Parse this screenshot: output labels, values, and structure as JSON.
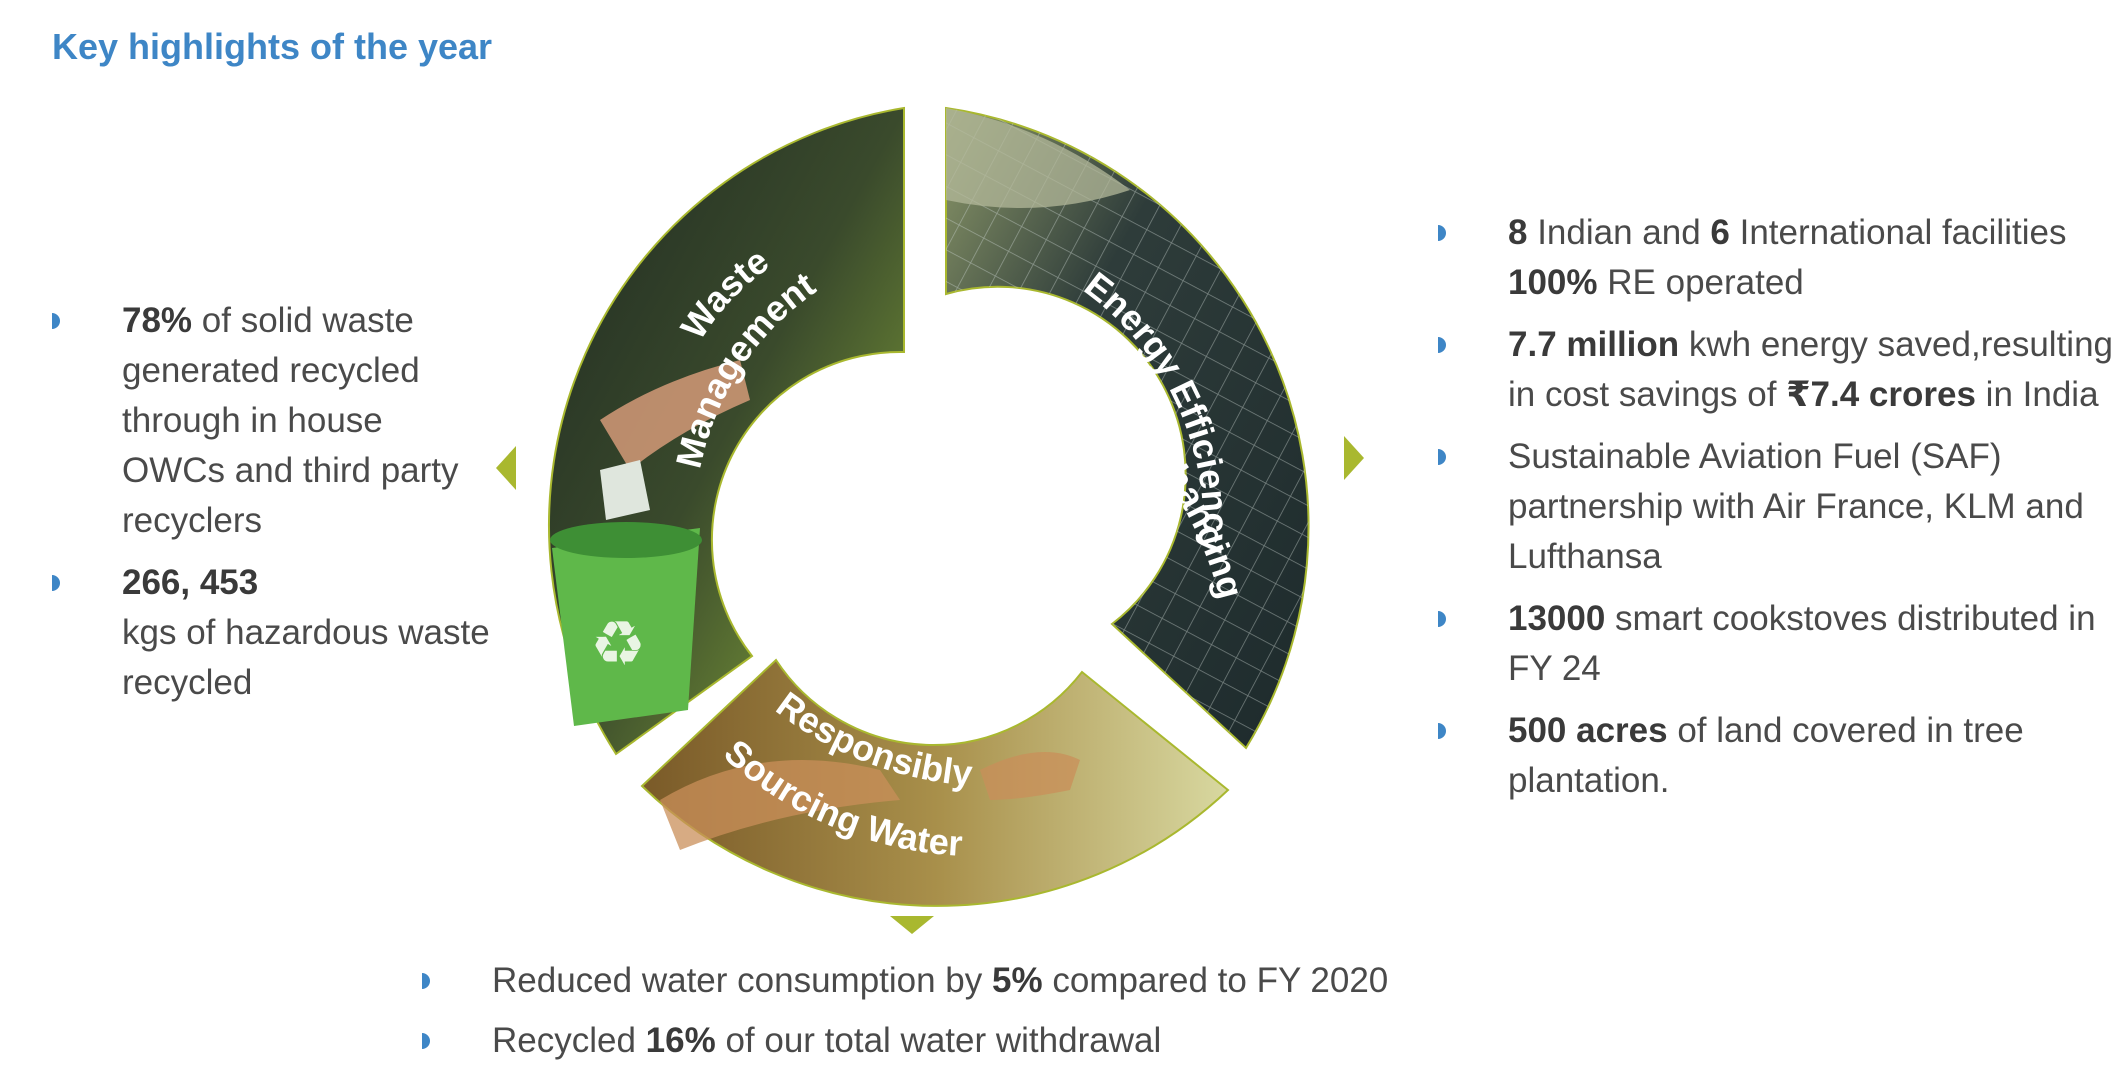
{
  "title": "Key highlights of the year",
  "colors": {
    "accent_blue": "#3e86c6",
    "olive": "#a9b82f",
    "text": "#4a4a4a"
  },
  "wheel": {
    "segments": [
      {
        "label_line1": "Waste",
        "label_line2": "Management",
        "icon": "recycle-bin-photo"
      },
      {
        "label_line1": "Enhancing",
        "label_line2": "Energy Efficiency",
        "icon": "solar-panels-photo"
      },
      {
        "label_line1": "Responsibly",
        "label_line2": "Sourcing Water",
        "icon": "hands-water-photo"
      }
    ]
  },
  "left": {
    "items": [
      {
        "bold": "78%",
        "text": " of solid waste generated recycled through in house OWCs and third party recyclers"
      },
      {
        "bold": "266, 453",
        "text": "kgs of hazardous waste recycled"
      }
    ]
  },
  "right": {
    "items": [
      {
        "b1": "8",
        "t1": " Indian and ",
        "b2": "6",
        "t2": " International facilities ",
        "b3": "100%",
        "t3": " RE operated"
      },
      {
        "b1": "7.7 million",
        "t1": " kwh energy saved,resulting in cost savings of ",
        "b2": "₹7.4 crores",
        "t2": " in India"
      },
      {
        "text": "Sustainable Aviation Fuel (SAF) partnership with Air France, KLM and Lufthansa"
      },
      {
        "b1": "13000",
        "t1": " smart cookstoves distributed in FY 24"
      },
      {
        "b1": "500 acres",
        "t1": " of land covered in tree plantation."
      }
    ]
  },
  "bottom": {
    "items": [
      {
        "t1": "Reduced water consumption by ",
        "b1": "5%",
        "t2": " compared to FY 2020"
      },
      {
        "t1": "Recycled ",
        "b1": "16%",
        "t2": " of our total water withdrawal"
      }
    ]
  }
}
